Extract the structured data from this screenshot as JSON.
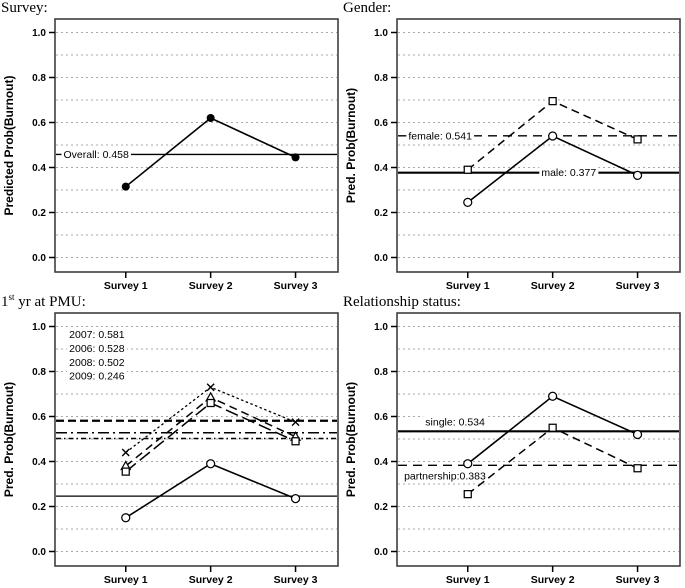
{
  "colors": {
    "background": "#ffffff",
    "frame": "#3f3f3f",
    "gridline": "#a8a8a8",
    "line": "#000000",
    "text": "#000000"
  },
  "panels": [
    {
      "title": {
        "pre": "Survey:",
        "sup": "",
        "post": ""
      }
    },
    {
      "title": {
        "pre": "Gender:",
        "sup": "",
        "post": ""
      }
    },
    {
      "title": {
        "pre": "1",
        "sup": "st",
        "post": " yr at PMU:"
      }
    },
    {
      "title": {
        "pre": "Relationship status:",
        "sup": "",
        "post": ""
      }
    }
  ],
  "chart_data": [
    {
      "type": "line",
      "title": "Survey:",
      "xlabel": "",
      "ylabel": "Predicted Prob(Burnout)",
      "categories": [
        "Survey 1",
        "Survey 2",
        "Survey 3"
      ],
      "ylim": [
        0.0,
        1.0
      ],
      "ytick_step": 0.2,
      "grid_step": 0.1,
      "grid": "dashed-horizontal",
      "legend_position": "none",
      "series": [
        {
          "name": "overall",
          "values": [
            0.315,
            0.62,
            0.445
          ],
          "line": "solid",
          "marker": "filled-circle"
        }
      ],
      "ref_lines": [
        {
          "value": 0.458,
          "label": "Overall: 0.458",
          "style": "solid",
          "label_x": 0.03,
          "label_pos": "on"
        }
      ],
      "annotations": []
    },
    {
      "type": "line",
      "title": "Gender:",
      "xlabel": "",
      "ylabel": "Pred. Prob(Burnout)",
      "categories": [
        "Survey 1",
        "Survey 2",
        "Survey 3"
      ],
      "ylim": [
        0.0,
        1.0
      ],
      "ytick_step": 0.2,
      "grid_step": 0.1,
      "grid": "dashed-horizontal",
      "legend_position": "none",
      "series": [
        {
          "name": "female",
          "values": [
            0.39,
            0.695,
            0.525
          ],
          "line": "dashed",
          "marker": "square"
        },
        {
          "name": "male",
          "values": [
            0.245,
            0.54,
            0.365
          ],
          "line": "solid",
          "marker": "circle"
        }
      ],
      "ref_lines": [
        {
          "value": 0.541,
          "label": "female: 0.541",
          "style": "dashed",
          "label_x": 0.04,
          "label_pos": "on"
        },
        {
          "value": 0.377,
          "label": "male: 0.377",
          "style": "solid-bold",
          "label_x": 0.51,
          "label_pos": "on"
        }
      ],
      "annotations": []
    },
    {
      "type": "line",
      "title": "1st yr at PMU:",
      "xlabel": "",
      "ylabel": "Pred. Prob(Burnout)",
      "categories": [
        "Survey 1",
        "Survey 2",
        "Survey 3"
      ],
      "ylim": [
        0.0,
        1.0
      ],
      "ytick_step": 0.2,
      "grid_step": 0.1,
      "grid": "dashed-horizontal",
      "legend_position": "none",
      "series": [
        {
          "name": "2007",
          "values": [
            0.44,
            0.73,
            0.575
          ],
          "line": "dotted",
          "marker": "x"
        },
        {
          "name": "2006",
          "values": [
            0.38,
            0.685,
            0.51
          ],
          "line": "dashed",
          "marker": "triangle"
        },
        {
          "name": "2008",
          "values": [
            0.355,
            0.66,
            0.49
          ],
          "line": "longdash",
          "marker": "square"
        },
        {
          "name": "2009",
          "values": [
            0.15,
            0.39,
            0.235
          ],
          "line": "solid",
          "marker": "circle"
        }
      ],
      "ref_lines": [
        {
          "value": 0.581,
          "style": "bold-dashed"
        },
        {
          "value": 0.528,
          "style": "dashdot"
        },
        {
          "value": 0.502,
          "style": "dashdotdot"
        },
        {
          "value": 0.246,
          "style": "solid"
        }
      ],
      "annotations": [
        {
          "text": "2007: 0.581",
          "x": 0.05,
          "y": 0.965
        },
        {
          "text": "2006: 0.528",
          "x": 0.05,
          "y": 0.903
        },
        {
          "text": "2008: 0.502",
          "x": 0.05,
          "y": 0.841
        },
        {
          "text": "2009: 0.246",
          "x": 0.05,
          "y": 0.779
        }
      ]
    },
    {
      "type": "line",
      "title": "Relationship status:",
      "xlabel": "",
      "ylabel": "Pred. Prob(Burnout)",
      "categories": [
        "Survey 1",
        "Survey 2",
        "Survey 3"
      ],
      "ylim": [
        0.0,
        1.0
      ],
      "ytick_step": 0.2,
      "grid_step": 0.1,
      "grid": "dashed-horizontal",
      "legend_position": "none",
      "series": [
        {
          "name": "single",
          "values": [
            0.39,
            0.69,
            0.52
          ],
          "line": "solid",
          "marker": "circle"
        },
        {
          "name": "partnership",
          "values": [
            0.255,
            0.55,
            0.37
          ],
          "line": "dashed",
          "marker": "square"
        }
      ],
      "ref_lines": [
        {
          "value": 0.534,
          "label": "single: 0.534",
          "style": "solid-bold",
          "label_x": 0.1,
          "label_pos": "above"
        },
        {
          "value": 0.383,
          "label": "partnership:0.383",
          "style": "dashed",
          "label_x": 0.025,
          "label_pos": "below"
        }
      ],
      "annotations": []
    }
  ]
}
